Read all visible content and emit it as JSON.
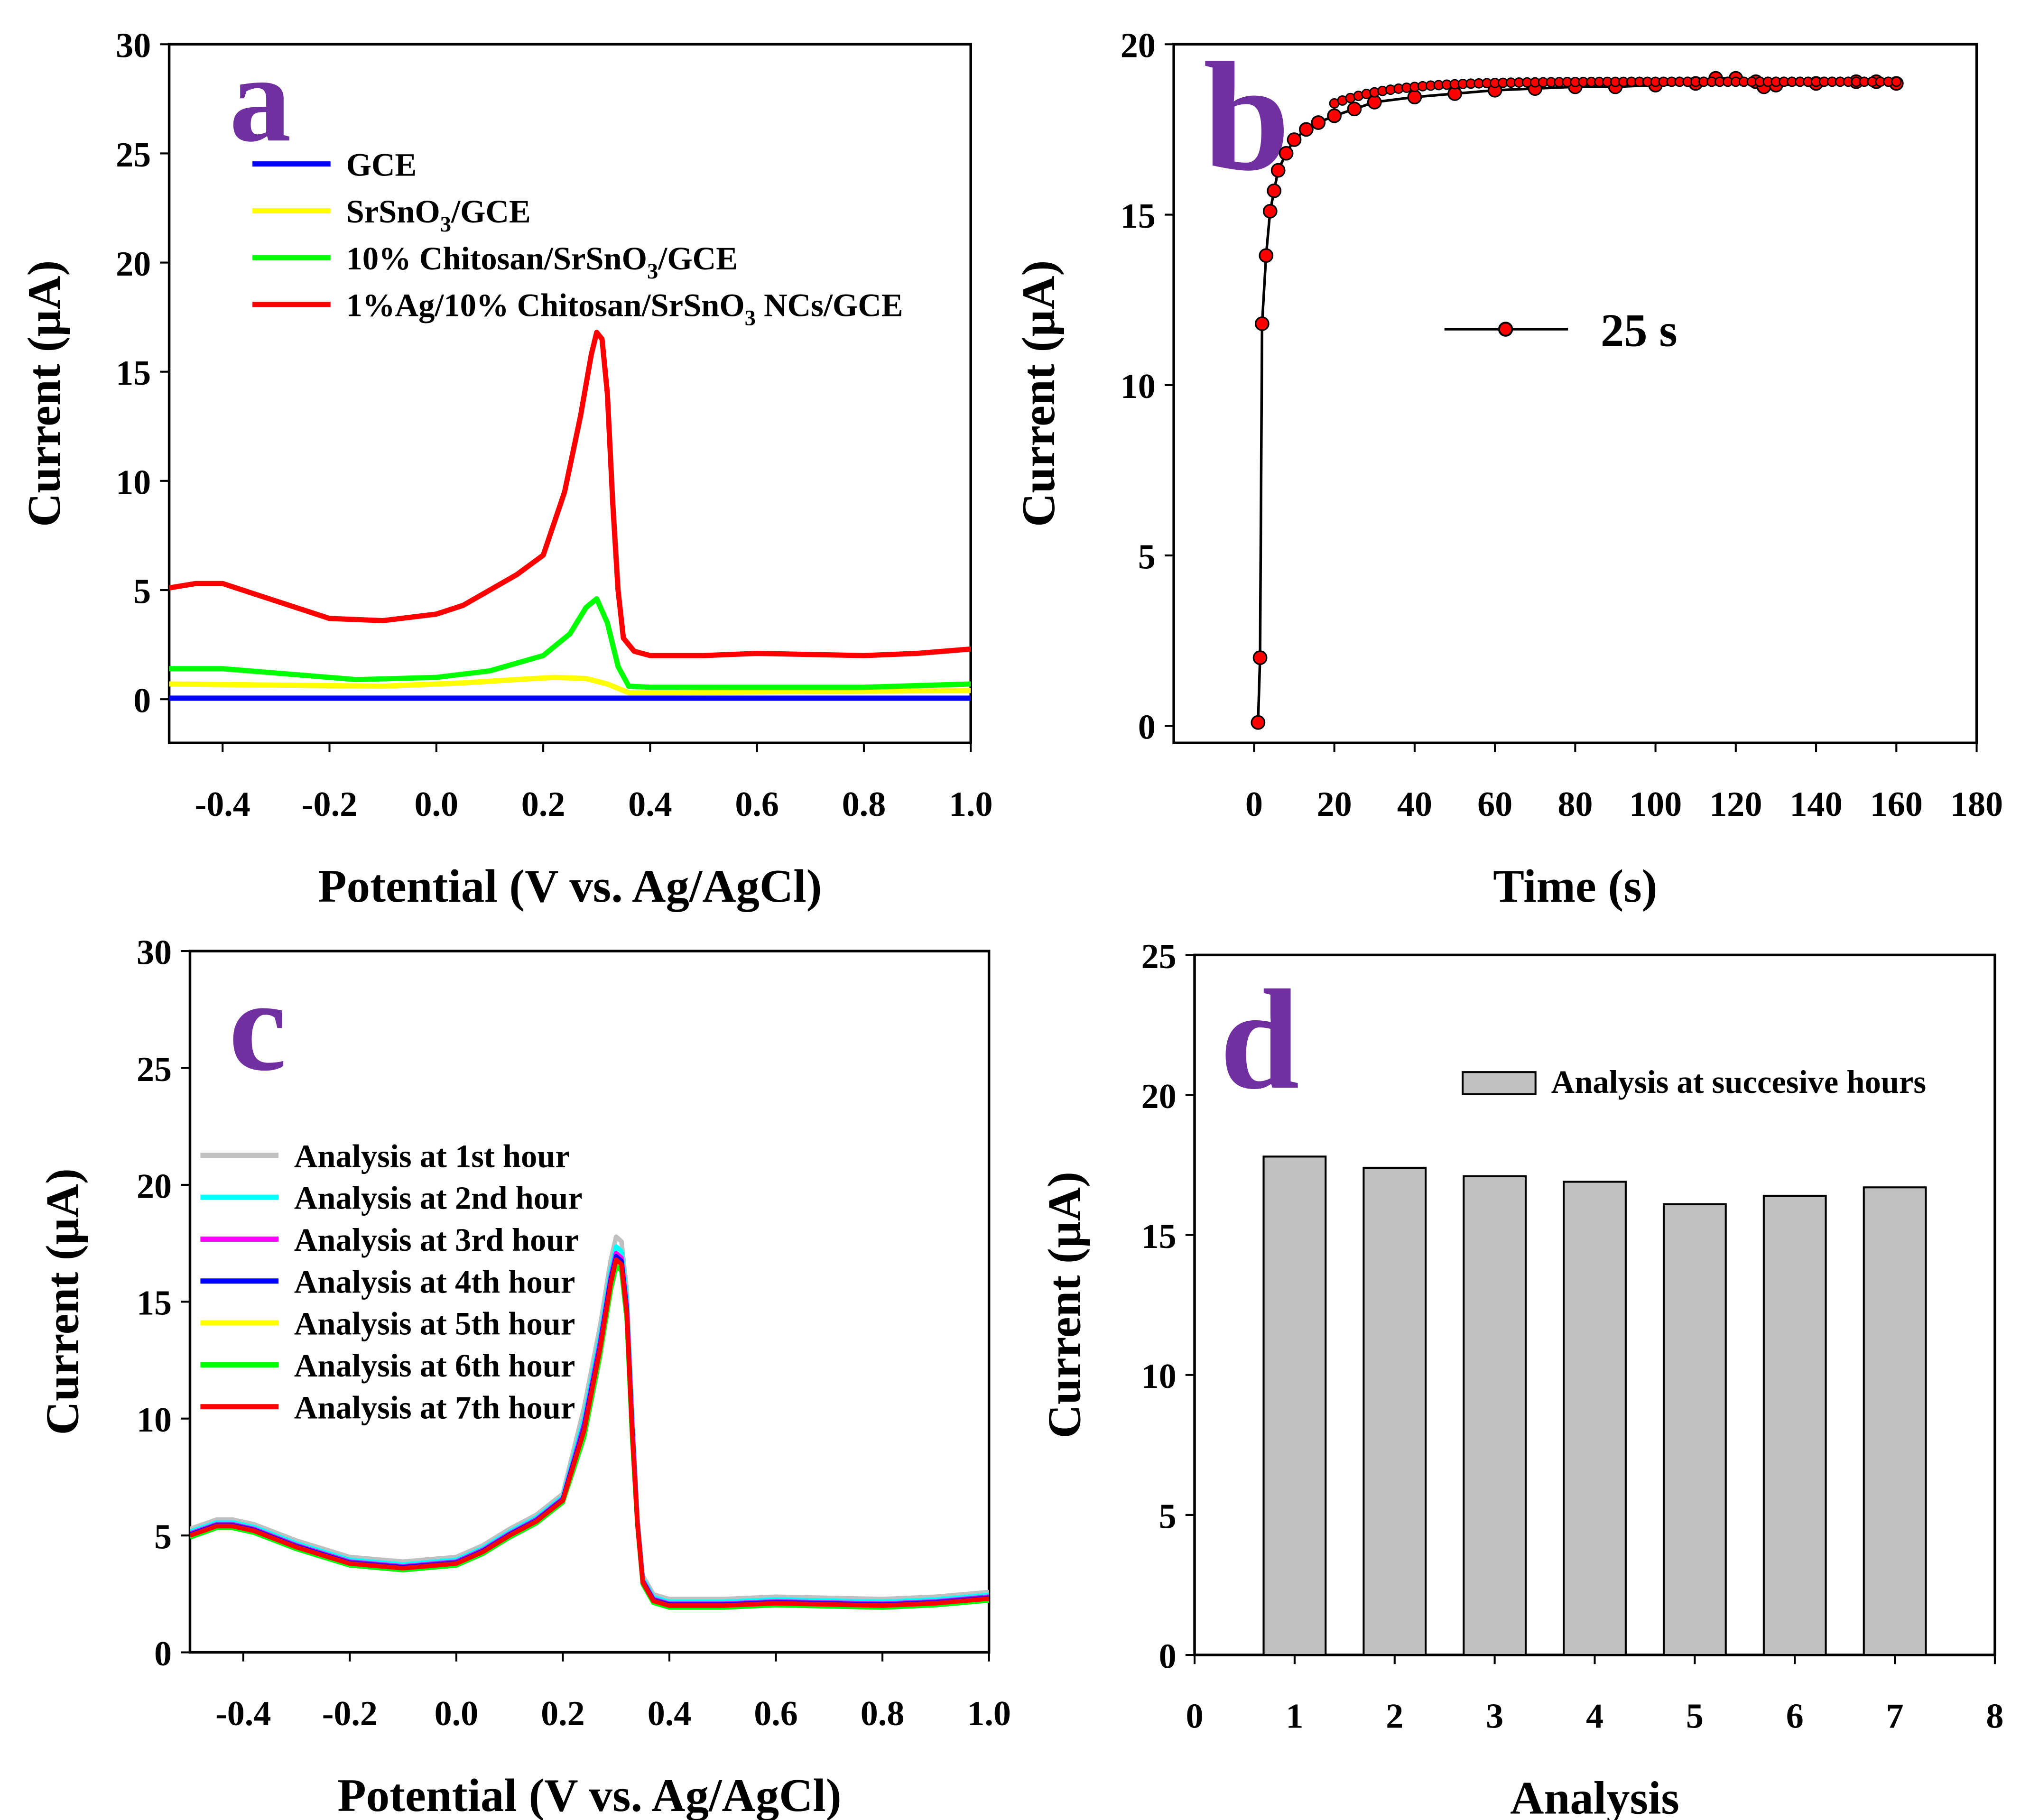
{
  "figure": {
    "background": "#ffffff",
    "letter_color": "#7030a0"
  },
  "chart_data": [
    {
      "panel": "a",
      "type": "line",
      "xlabel": "Potential (V vs. Ag/AgCl)",
      "ylabel": "Current (µA)",
      "xlim": [
        -0.5,
        1.0
      ],
      "ylim": [
        -2,
        30
      ],
      "xticks": [
        -0.4,
        -0.2,
        0.0,
        0.2,
        0.4,
        0.6,
        0.8,
        1.0
      ],
      "xtick_labels": [
        "-0.4",
        "-0.2",
        "0.0",
        "0.2",
        "0.4",
        "0.6",
        "0.8",
        "1.0"
      ],
      "yticks": [
        0,
        5,
        10,
        15,
        20,
        25,
        30
      ],
      "ytick_labels": [
        "0",
        "5",
        "10",
        "15",
        "20",
        "25",
        "30"
      ],
      "legend_location": "top-left",
      "series": [
        {
          "name": "GCE",
          "legend_main": "GCE",
          "legend_sub": "",
          "legend_tail": "",
          "color": "#0000ff",
          "x": [
            -0.5,
            1.0
          ],
          "y": [
            0.05,
            0.05
          ]
        },
        {
          "name": "SrSnO3/GCE",
          "legend_main": "SrSnO",
          "legend_sub": "3",
          "legend_tail": "/GCE",
          "color": "#ffff00",
          "x": [
            -0.5,
            -0.3,
            -0.1,
            0.05,
            0.15,
            0.22,
            0.28,
            0.32,
            0.36,
            0.45,
            0.7,
            1.0
          ],
          "y": [
            0.7,
            0.65,
            0.6,
            0.75,
            0.9,
            1.0,
            0.95,
            0.7,
            0.3,
            0.3,
            0.35,
            0.4
          ]
        },
        {
          "name": "10% Chitosan/SrSnO3/GCE",
          "legend_main": "10% Chitosan/SrSnO",
          "legend_sub": "3",
          "legend_tail": "/GCE",
          "color": "#00ff00",
          "x": [
            -0.5,
            -0.4,
            -0.3,
            -0.15,
            0.0,
            0.1,
            0.2,
            0.25,
            0.28,
            0.3,
            0.32,
            0.34,
            0.36,
            0.4,
            0.6,
            0.8,
            1.0
          ],
          "y": [
            1.4,
            1.4,
            1.2,
            0.9,
            1.0,
            1.3,
            2.0,
            3.0,
            4.2,
            4.6,
            3.5,
            1.5,
            0.6,
            0.55,
            0.55,
            0.55,
            0.7
          ]
        },
        {
          "name": "1%Ag/10% Chitosan/SrSnO3 NCs/GCE",
          "legend_main": "1%Ag/10% Chitosan/SrSnO",
          "legend_sub": "3",
          "legend_tail": " NCs/GCE",
          "color": "#ff0000",
          "x": [
            -0.5,
            -0.45,
            -0.4,
            -0.3,
            -0.2,
            -0.1,
            0.0,
            0.05,
            0.1,
            0.15,
            0.2,
            0.24,
            0.27,
            0.29,
            0.3,
            0.31,
            0.32,
            0.33,
            0.34,
            0.35,
            0.37,
            0.4,
            0.5,
            0.6,
            0.8,
            0.9,
            1.0
          ],
          "y": [
            5.1,
            5.3,
            5.3,
            4.5,
            3.7,
            3.6,
            3.9,
            4.3,
            5.0,
            5.7,
            6.6,
            9.5,
            13.0,
            15.8,
            16.8,
            16.5,
            14.0,
            9.0,
            5.0,
            2.8,
            2.2,
            2.0,
            2.0,
            2.1,
            2.0,
            2.1,
            2.3
          ]
        }
      ]
    },
    {
      "panel": "b",
      "type": "scatter",
      "xlabel": "Time (s)",
      "ylabel": "Current (µA)",
      "xlim": [
        -20,
        180
      ],
      "ylim": [
        -0.5,
        20
      ],
      "xticks": [
        0,
        20,
        40,
        60,
        80,
        100,
        120,
        140,
        160,
        180
      ],
      "xtick_labels": [
        "0",
        "20",
        "40",
        "60",
        "80",
        "100",
        "120",
        "140",
        "160",
        "180"
      ],
      "yticks": [
        0,
        5,
        10,
        15,
        20
      ],
      "ytick_labels": [
        "0",
        "5",
        "10",
        "15",
        "20"
      ],
      "legend_location": "center-right",
      "series": [
        {
          "name": "25 s",
          "line_color": "#000000",
          "marker_color": "#ff0000",
          "x": [
            1,
            1.5,
            2,
            3,
            4,
            5,
            6,
            8,
            10,
            13,
            16,
            20,
            25,
            30,
            40,
            50,
            60,
            70,
            80,
            90,
            100,
            110,
            115,
            120,
            125,
            127,
            130,
            140,
            150,
            155,
            160
          ],
          "y": [
            0.1,
            2,
            11.8,
            13.8,
            15.1,
            15.7,
            16.3,
            16.8,
            17.2,
            17.5,
            17.7,
            17.9,
            18.1,
            18.3,
            18.45,
            18.55,
            18.65,
            18.7,
            18.75,
            18.75,
            18.8,
            18.85,
            19.0,
            19.0,
            18.9,
            18.75,
            18.8,
            18.85,
            18.9,
            18.9,
            18.85
          ]
        }
      ]
    },
    {
      "panel": "c",
      "type": "line",
      "xlabel": "Potential (V vs. Ag/AgCl)",
      "ylabel": "Current (µA)",
      "xlim": [
        -0.5,
        1.0
      ],
      "ylim": [
        0,
        30
      ],
      "xticks": [
        -0.4,
        -0.2,
        0.0,
        0.2,
        0.4,
        0.6,
        0.8,
        1.0
      ],
      "xtick_labels": [
        "-0.4",
        "-0.2",
        "0.0",
        "0.2",
        "0.4",
        "0.6",
        "0.8",
        "1.0"
      ],
      "yticks": [
        0,
        5,
        10,
        15,
        20,
        25,
        30
      ],
      "ytick_labels": [
        "0",
        "5",
        "10",
        "15",
        "20",
        "25",
        "30"
      ],
      "legend_location": "center-left",
      "base_curve": {
        "x": [
          -0.5,
          -0.45,
          -0.42,
          -0.38,
          -0.3,
          -0.2,
          -0.1,
          0.0,
          0.05,
          0.1,
          0.15,
          0.2,
          0.24,
          0.27,
          0.29,
          0.3,
          0.31,
          0.32,
          0.33,
          0.34,
          0.35,
          0.37,
          0.4,
          0.5,
          0.6,
          0.8,
          0.9,
          1.0
        ],
        "y": [
          5.0,
          5.4,
          5.4,
          5.2,
          4.5,
          3.8,
          3.6,
          3.8,
          4.3,
          5.0,
          5.6,
          6.5,
          9.5,
          13.0,
          15.8,
          16.8,
          16.6,
          14.5,
          9.5,
          5.5,
          3.0,
          2.2,
          2.0,
          2.0,
          2.1,
          2.0,
          2.1,
          2.3
        ]
      },
      "series": [
        {
          "name": "Analysis at 1st hour",
          "color": "#c0c0c0",
          "offset": 0.7
        },
        {
          "name": "Analysis at 2nd hour",
          "color": "#00ffff",
          "offset": 0.4
        },
        {
          "name": "Analysis at 3rd hour",
          "color": "#ff00ff",
          "offset": 0.2
        },
        {
          "name": "Analysis at 4th hour",
          "color": "#0000ff",
          "offset": 0.1
        },
        {
          "name": "Analysis at 5th hour",
          "color": "#ffff00",
          "offset": -0.1
        },
        {
          "name": "Analysis at 6th hour",
          "color": "#00ff00",
          "offset": -0.2
        },
        {
          "name": "Analysis at 7th hour",
          "color": "#ff0000",
          "offset": 0.0
        }
      ]
    },
    {
      "panel": "d",
      "type": "bar",
      "xlabel": "Analysis",
      "ylabel": "Current (µA)",
      "xlim": [
        0,
        8
      ],
      "ylim": [
        0,
        25
      ],
      "xticks": [
        0,
        1,
        2,
        3,
        4,
        5,
        6,
        7,
        8
      ],
      "xtick_labels": [
        "0",
        "1",
        "2",
        "3",
        "4",
        "5",
        "6",
        "7",
        "8"
      ],
      "yticks": [
        0,
        5,
        10,
        15,
        20,
        25
      ],
      "ytick_labels": [
        "0",
        "5",
        "10",
        "15",
        "20",
        "25"
      ],
      "legend_location": "top-right",
      "bar_color": "#c0c0c0",
      "series": [
        {
          "name": "Analysis at succesive hours",
          "categories": [
            1,
            2,
            3,
            4,
            5,
            6,
            7
          ],
          "values": [
            17.8,
            17.4,
            17.1,
            16.9,
            16.1,
            16.4,
            16.7
          ]
        }
      ]
    }
  ]
}
